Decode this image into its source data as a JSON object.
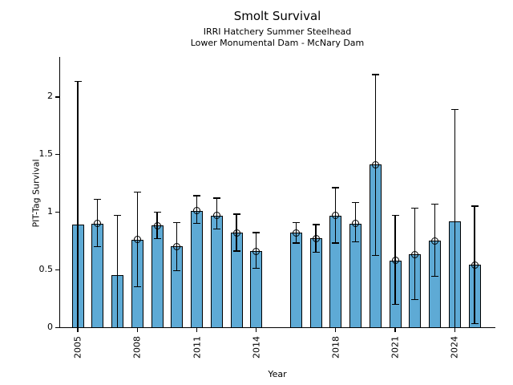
{
  "chart_data": {
    "type": "bar",
    "title": "Smolt Survival",
    "subtitle_lines": [
      "IRRI Hatchery Summer Steelhead",
      "Lower Monumental Dam - McNary Dam"
    ],
    "xlabel": "Year",
    "ylabel": "PIT-Tag Survival",
    "grid": false,
    "legend": null,
    "xlim": [
      2004.1,
      2026.0
    ],
    "ylim": [
      0,
      2.34
    ],
    "yticks": {
      "values": [
        0,
        0.5,
        1,
        1.5,
        2
      ],
      "labels": [
        "0",
        "0.5",
        "1",
        "1.5",
        "2"
      ]
    },
    "xticks": {
      "values": [
        2005,
        2008,
        2011,
        2014,
        2018,
        2021,
        2024
      ],
      "labels": [
        "2005",
        "2008",
        "2011",
        "2014",
        "2018",
        "2021",
        "2024"
      ]
    },
    "colors": {
      "bar_fill": "#5EAAD5",
      "bar_edge": "#000000",
      "error_bar": "#000000",
      "background": "#FFFFFF",
      "text": "#000000"
    },
    "points": [
      {
        "year": 2005,
        "value": 0.89,
        "ci_low": 0.0,
        "ci_high": 2.13,
        "low_clipped": true,
        "marker": false
      },
      {
        "year": 2006,
        "value": 0.9,
        "ci_low": 0.7,
        "ci_high": 1.11,
        "low_clipped": false,
        "marker": true
      },
      {
        "year": 2007,
        "value": 0.45,
        "ci_low": 0.0,
        "ci_high": 0.97,
        "low_clipped": true,
        "marker": false
      },
      {
        "year": 2008,
        "value": 0.76,
        "ci_low": 0.35,
        "ci_high": 1.17,
        "low_clipped": false,
        "marker": true
      },
      {
        "year": 2009,
        "value": 0.88,
        "ci_low": 0.77,
        "ci_high": 1.0,
        "low_clipped": false,
        "marker": true
      },
      {
        "year": 2010,
        "value": 0.7,
        "ci_low": 0.49,
        "ci_high": 0.91,
        "low_clipped": false,
        "marker": true
      },
      {
        "year": 2011,
        "value": 1.01,
        "ci_low": 0.9,
        "ci_high": 1.14,
        "low_clipped": false,
        "marker": true
      },
      {
        "year": 2012,
        "value": 0.97,
        "ci_low": 0.85,
        "ci_high": 1.12,
        "low_clipped": false,
        "marker": true
      },
      {
        "year": 2013,
        "value": 0.82,
        "ci_low": 0.66,
        "ci_high": 0.98,
        "low_clipped": false,
        "marker": true
      },
      {
        "year": 2014,
        "value": 0.66,
        "ci_low": 0.51,
        "ci_high": 0.82,
        "low_clipped": false,
        "marker": true
      },
      {
        "year": 2016,
        "value": 0.82,
        "ci_low": 0.73,
        "ci_high": 0.91,
        "low_clipped": false,
        "marker": true
      },
      {
        "year": 2017,
        "value": 0.77,
        "ci_low": 0.65,
        "ci_high": 0.89,
        "low_clipped": false,
        "marker": true
      },
      {
        "year": 2018,
        "value": 0.97,
        "ci_low": 0.73,
        "ci_high": 1.21,
        "low_clipped": false,
        "marker": true
      },
      {
        "year": 2019,
        "value": 0.9,
        "ci_low": 0.74,
        "ci_high": 1.08,
        "low_clipped": false,
        "marker": true
      },
      {
        "year": 2020,
        "value": 1.41,
        "ci_low": 0.62,
        "ci_high": 2.19,
        "low_clipped": false,
        "marker": true
      },
      {
        "year": 2021,
        "value": 0.58,
        "ci_low": 0.2,
        "ci_high": 0.97,
        "low_clipped": false,
        "marker": true
      },
      {
        "year": 2022,
        "value": 0.63,
        "ci_low": 0.24,
        "ci_high": 1.03,
        "low_clipped": false,
        "marker": true
      },
      {
        "year": 2023,
        "value": 0.75,
        "ci_low": 0.44,
        "ci_high": 1.07,
        "low_clipped": false,
        "marker": true
      },
      {
        "year": 2024,
        "value": 0.92,
        "ci_low": 0.0,
        "ci_high": 1.89,
        "low_clipped": true,
        "marker": false
      },
      {
        "year": 2025,
        "value": 0.54,
        "ci_low": 0.03,
        "ci_high": 1.05,
        "low_clipped": false,
        "marker": true
      }
    ]
  }
}
